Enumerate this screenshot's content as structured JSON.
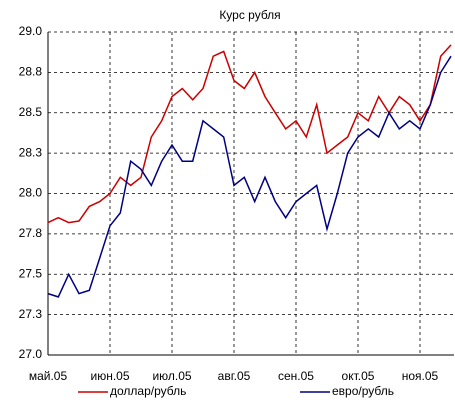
{
  "chart_data": {
    "type": "line",
    "title": "Курс рубля",
    "categories": [
      "май.05",
      null,
      null,
      null,
      null,
      null,
      "июн.05",
      null,
      null,
      null,
      null,
      null,
      "июл.05",
      null,
      null,
      null,
      null,
      null,
      "авг.05",
      null,
      null,
      null,
      null,
      null,
      "сен.05",
      null,
      null,
      null,
      null,
      null,
      "окт.05",
      null,
      null,
      null,
      null,
      null,
      "ноя.05",
      null,
      null,
      null
    ],
    "series": [
      {
        "name": "доллар/рубль",
        "color": "#cc0000",
        "values": [
          27.82,
          27.85,
          27.82,
          27.83,
          27.92,
          27.95,
          28.0,
          28.1,
          28.05,
          28.1,
          28.35,
          28.45,
          28.6,
          28.65,
          28.58,
          28.65,
          28.85,
          28.88,
          28.7,
          28.65,
          28.75,
          28.6,
          28.5,
          28.4,
          28.45,
          28.35,
          28.55,
          28.25,
          28.3,
          28.35,
          28.5,
          28.45,
          28.6,
          28.5,
          28.6,
          28.55,
          28.45,
          28.55,
          28.85,
          28.92
        ]
      },
      {
        "name": "евро/рубль",
        "color": "#000080",
        "values": [
          27.38,
          27.36,
          27.5,
          27.38,
          27.4,
          27.6,
          27.8,
          27.88,
          28.2,
          28.15,
          28.05,
          28.2,
          28.3,
          28.2,
          28.2,
          28.45,
          28.4,
          28.35,
          28.05,
          28.1,
          27.95,
          28.1,
          27.95,
          27.85,
          27.95,
          28.0,
          28.05,
          27.78,
          28.0,
          28.25,
          28.35,
          28.4,
          28.35,
          28.5,
          28.4,
          28.45,
          28.4,
          28.55,
          28.75,
          28.85
        ]
      }
    ],
    "ylim": [
      27,
      29
    ],
    "yticks": [
      {
        "value": 27,
        "label": "27.0"
      },
      {
        "value": 27.25,
        "label": "27.3"
      },
      {
        "value": 27.5,
        "label": "27.5"
      },
      {
        "value": 27.75,
        "label": "27.8"
      },
      {
        "value": 28,
        "label": "28.0"
      },
      {
        "value": 28.25,
        "label": "28.3"
      },
      {
        "value": 28.5,
        "label": "28.5"
      },
      {
        "value": 28.75,
        "label": "28.8"
      },
      {
        "value": 29,
        "label": "29.0"
      }
    ],
    "grid": true,
    "legend": "bottom"
  }
}
